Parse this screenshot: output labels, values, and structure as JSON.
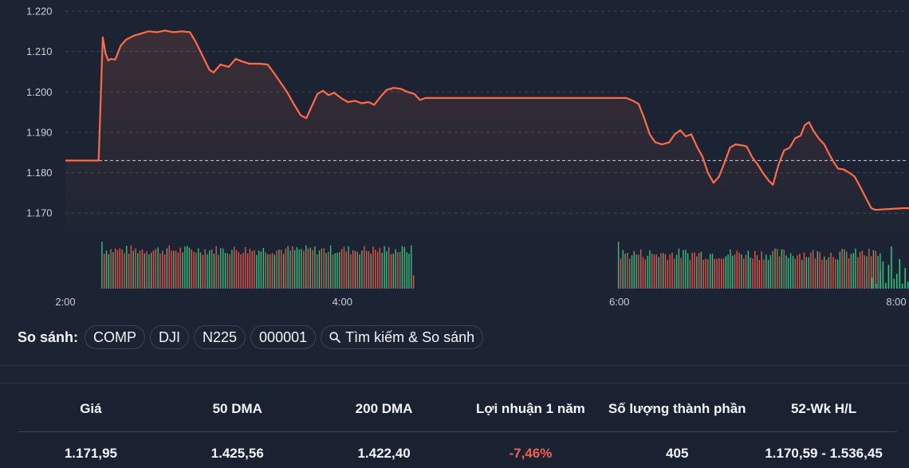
{
  "chart_data": {
    "type": "line",
    "ylim": [
      1.1655,
      1.2205
    ],
    "y_ticks": [
      "1.220",
      "1.210",
      "1.200",
      "1.190",
      "1.180",
      "1.170"
    ],
    "y_tick_values": [
      1.22,
      1.21,
      1.2,
      1.19,
      1.18,
      1.17
    ],
    "x_ticks": [
      "2:00",
      "4:00",
      "6:00",
      "8:00"
    ],
    "x_tick_hours": [
      2,
      4,
      6,
      8
    ],
    "xlim_hours": [
      2.0,
      8.0
    ],
    "reference_line": 1.183,
    "line_color": "#ff6b47",
    "up_color": "#2ec27e",
    "down_color": "#e0574a",
    "price": [
      [
        2.0,
        1.183
      ],
      [
        2.24,
        1.183
      ],
      [
        2.27,
        1.2135
      ],
      [
        2.29,
        1.2095
      ],
      [
        2.31,
        1.2078
      ],
      [
        2.33,
        1.2082
      ],
      [
        2.36,
        1.208
      ],
      [
        2.4,
        1.2115
      ],
      [
        2.44,
        1.213
      ],
      [
        2.5,
        1.214
      ],
      [
        2.55,
        1.2145
      ],
      [
        2.6,
        1.215
      ],
      [
        2.66,
        1.2148
      ],
      [
        2.72,
        1.2152
      ],
      [
        2.78,
        1.2148
      ],
      [
        2.84,
        1.215
      ],
      [
        2.9,
        1.2148
      ],
      [
        2.94,
        1.2125
      ],
      [
        2.99,
        1.209
      ],
      [
        3.04,
        1.2055
      ],
      [
        3.07,
        1.2048
      ],
      [
        3.12,
        1.2068
      ],
      [
        3.18,
        1.2062
      ],
      [
        3.23,
        1.2082
      ],
      [
        3.28,
        1.2075
      ],
      [
        3.33,
        1.207
      ],
      [
        3.4,
        1.207
      ],
      [
        3.46,
        1.2068
      ],
      [
        3.5,
        1.205
      ],
      [
        3.55,
        1.2025
      ],
      [
        3.6,
        1.2
      ],
      [
        3.65,
        1.197
      ],
      [
        3.7,
        1.1942
      ],
      [
        3.74,
        1.1935
      ],
      [
        3.78,
        1.1965
      ],
      [
        3.82,
        1.1995
      ],
      [
        3.86,
        1.2003
      ],
      [
        3.9,
        1.1992
      ],
      [
        3.94,
        1.1998
      ],
      [
        3.99,
        1.1985
      ],
      [
        4.04,
        1.1975
      ],
      [
        4.09,
        1.1978
      ],
      [
        4.14,
        1.1972
      ],
      [
        4.19,
        1.1975
      ],
      [
        4.23,
        1.1968
      ],
      [
        4.28,
        1.199
      ],
      [
        4.32,
        1.2005
      ],
      [
        4.37,
        1.201
      ],
      [
        4.42,
        1.2008
      ],
      [
        4.47,
        1.2
      ],
      [
        4.52,
        1.1995
      ],
      [
        4.56,
        1.198
      ],
      [
        4.6,
        1.1985
      ],
      [
        4.7,
        1.1985
      ],
      [
        4.9,
        1.1985
      ],
      [
        5.2,
        1.1985
      ],
      [
        5.5,
        1.1985
      ],
      [
        5.9,
        1.1985
      ],
      [
        6.05,
        1.1985
      ],
      [
        6.1,
        1.1978
      ],
      [
        6.14,
        1.197
      ],
      [
        6.18,
        1.1935
      ],
      [
        6.22,
        1.1895
      ],
      [
        6.26,
        1.1875
      ],
      [
        6.31,
        1.187
      ],
      [
        6.36,
        1.1875
      ],
      [
        6.4,
        1.1895
      ],
      [
        6.44,
        1.1905
      ],
      [
        6.48,
        1.189
      ],
      [
        6.52,
        1.1895
      ],
      [
        6.56,
        1.1865
      ],
      [
        6.6,
        1.184
      ],
      [
        6.64,
        1.18
      ],
      [
        6.68,
        1.1775
      ],
      [
        6.72,
        1.179
      ],
      [
        6.76,
        1.1825
      ],
      [
        6.8,
        1.1862
      ],
      [
        6.84,
        1.187
      ],
      [
        6.88,
        1.1868
      ],
      [
        6.92,
        1.1865
      ],
      [
        6.96,
        1.1838
      ],
      [
        7.0,
        1.182
      ],
      [
        7.04,
        1.1798
      ],
      [
        7.08,
        1.178
      ],
      [
        7.11,
        1.177
      ],
      [
        7.15,
        1.182
      ],
      [
        7.19,
        1.1855
      ],
      [
        7.23,
        1.1862
      ],
      [
        7.27,
        1.1885
      ],
      [
        7.31,
        1.1892
      ],
      [
        7.34,
        1.1918
      ],
      [
        7.37,
        1.1925
      ],
      [
        7.4,
        1.1905
      ],
      [
        7.44,
        1.1885
      ],
      [
        7.48,
        1.187
      ],
      [
        7.51,
        1.185
      ],
      [
        7.55,
        1.1825
      ],
      [
        7.58,
        1.181
      ],
      [
        7.62,
        1.1808
      ],
      [
        7.66,
        1.18
      ],
      [
        7.7,
        1.179
      ],
      [
        7.74,
        1.1765
      ],
      [
        7.78,
        1.1738
      ],
      [
        7.82,
        1.1712
      ],
      [
        7.85,
        1.1708
      ],
      [
        7.95,
        1.171
      ],
      [
        8.05,
        1.1712
      ],
      [
        8.14,
        1.1712
      ]
    ],
    "volume_segments": [
      {
        "start": 2.26,
        "end": 4.51,
        "bars": 140,
        "base": 0.78,
        "amp": 0.1,
        "last_low": 0.45
      },
      {
        "start": 5.99,
        "end": 7.88,
        "bars": 118,
        "base": 0.7,
        "amp": 0.12,
        "last_low": 0.0
      }
    ],
    "volume_tail": [
      [
        7.82,
        0.22
      ],
      [
        7.85,
        0.1
      ],
      [
        7.88,
        0.35
      ],
      [
        7.9,
        0.55
      ],
      [
        7.92,
        0.12
      ],
      [
        7.94,
        0.48
      ],
      [
        7.96,
        0.85
      ],
      [
        7.98,
        0.2
      ],
      [
        8.0,
        0.3
      ],
      [
        8.02,
        0.6
      ],
      [
        8.04,
        0.1
      ],
      [
        8.06,
        0.42
      ],
      [
        8.08,
        0.14
      ],
      [
        8.1,
        0.35
      ],
      [
        8.12,
        0.15
      ]
    ]
  },
  "compare": {
    "label": "So sánh:",
    "chips": [
      "COMP",
      "DJI",
      "N225",
      "000001"
    ],
    "search_label": "Tìm kiếm & So sánh"
  },
  "stats": {
    "headers": [
      "Giá",
      "50 DMA",
      "200 DMA",
      "Lợi nhuận 1 năm",
      "Số lượng thành phần",
      "52-Wk H/L"
    ],
    "values": [
      "1.171,95",
      "1.425,56",
      "1.422,40",
      "-7,46%",
      "405",
      "1.170,59 - 1.536,45"
    ]
  }
}
